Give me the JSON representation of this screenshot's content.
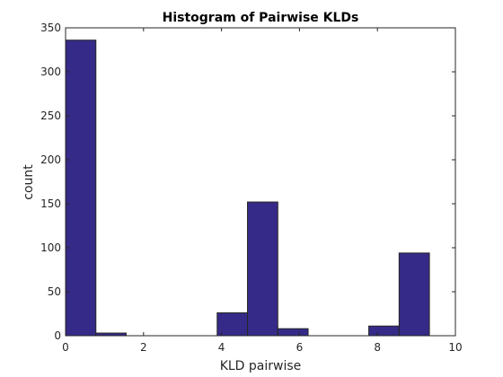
{
  "chart_data": {
    "type": "bar",
    "title": "Histogram of Pairwise KLDs",
    "xlabel": "KLD pairwise",
    "ylabel": "count",
    "xlim": [
      0,
      10
    ],
    "ylim": [
      0,
      350
    ],
    "xticks": [
      "0",
      "2",
      "4",
      "6",
      "8",
      "10"
    ],
    "yticks": [
      "0",
      "50",
      "100",
      "150",
      "200",
      "250",
      "300",
      "350"
    ],
    "bin_width": 0.7778,
    "bins": [
      {
        "start": 0.0,
        "end": 0.7778,
        "value": 336
      },
      {
        "start": 0.7778,
        "end": 1.5556,
        "value": 3
      },
      {
        "start": 1.5556,
        "end": 2.3333,
        "value": 0
      },
      {
        "start": 2.3333,
        "end": 3.1111,
        "value": 0
      },
      {
        "start": 3.1111,
        "end": 3.8889,
        "value": 0
      },
      {
        "start": 3.8889,
        "end": 4.6667,
        "value": 26
      },
      {
        "start": 4.6667,
        "end": 5.4444,
        "value": 152
      },
      {
        "start": 5.4444,
        "end": 6.2222,
        "value": 8
      },
      {
        "start": 6.2222,
        "end": 7.0,
        "value": 0
      },
      {
        "start": 7.0,
        "end": 7.7778,
        "value": 0
      },
      {
        "start": 7.7778,
        "end": 8.5556,
        "value": 11
      },
      {
        "start": 8.5556,
        "end": 9.3333,
        "value": 94
      }
    ],
    "bar_color": "#352a87",
    "edge_color": "#262626",
    "grid": false
  }
}
